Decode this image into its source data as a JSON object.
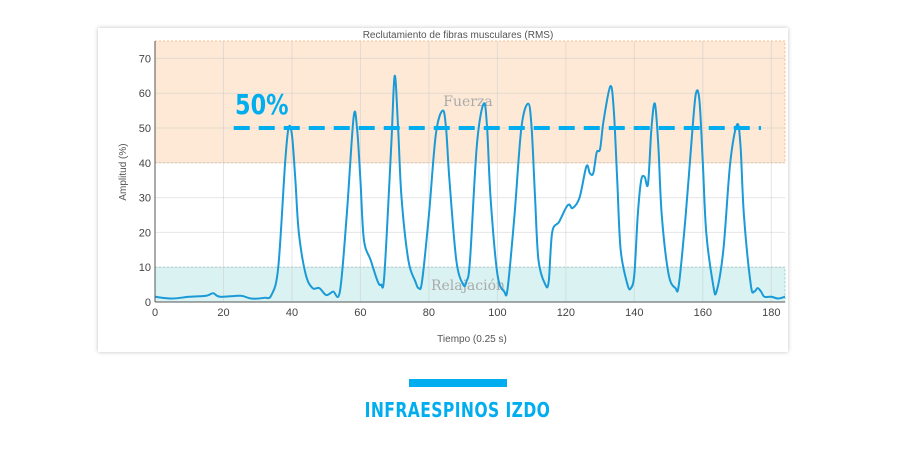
{
  "chart_data": {
    "type": "line",
    "title": "Reclutamiento de fibras musculares (RMS)",
    "xlabel": "Tiempo (0.25 s)",
    "ylabel": "Amplitud (%)",
    "xlim": [
      0,
      184
    ],
    "ylim": [
      0,
      75
    ],
    "xticks": [
      0,
      20,
      40,
      60,
      80,
      100,
      120,
      140,
      160,
      180
    ],
    "yticks": [
      0,
      10,
      20,
      30,
      40,
      50,
      60,
      70
    ],
    "grid": true,
    "line_color": "#1a9ad6",
    "bands": [
      {
        "label": "Fuerza",
        "from": 40,
        "to": 75,
        "color": "#fde9d6",
        "border": "#f6bf8e"
      },
      {
        "label": "Relajación",
        "from": 0,
        "to": 10,
        "color": "#daf2f2",
        "border": "#8fd3d3"
      }
    ],
    "threshold": {
      "label": "50%",
      "value": 50,
      "x_from": 23,
      "x_to": 177,
      "color": "#00aeef"
    },
    "x": [
      0,
      5,
      10,
      15,
      17,
      19,
      25,
      28,
      32,
      34,
      36,
      38,
      39,
      40,
      41,
      42,
      44,
      46,
      48,
      50,
      52,
      54,
      56,
      58,
      59,
      60,
      61,
      63,
      65,
      66,
      67,
      69,
      70,
      71,
      72,
      74,
      76,
      77,
      78,
      80,
      82,
      84,
      85,
      86,
      88,
      90,
      91,
      92,
      94,
      96,
      97,
      98,
      100,
      102,
      103,
      105,
      107,
      109,
      110,
      111,
      112,
      114,
      115,
      116,
      118,
      120,
      121,
      122,
      124,
      126,
      127,
      128,
      129,
      130,
      131,
      133,
      134,
      135,
      136,
      138,
      139,
      140,
      141,
      142,
      143,
      144,
      145,
      146,
      147,
      148,
      150,
      152,
      153,
      155,
      157,
      158,
      159,
      160,
      161,
      163,
      164,
      166,
      168,
      170,
      171,
      172,
      174,
      175,
      176,
      177,
      178,
      180,
      182,
      184
    ],
    "y": [
      1.5,
      1,
      1.5,
      1.8,
      2.5,
      1.5,
      1.8,
      1,
      1.2,
      2,
      10,
      40,
      50,
      48,
      35,
      20,
      8,
      4,
      4,
      2,
      3,
      3,
      25,
      53,
      50,
      35,
      18,
      12,
      6,
      5,
      8,
      45,
      65,
      50,
      30,
      12,
      6,
      4,
      6,
      25,
      48,
      55,
      50,
      35,
      12,
      5,
      6,
      12,
      45,
      57,
      50,
      30,
      8,
      3,
      4,
      25,
      50,
      57,
      50,
      30,
      12,
      5,
      6,
      20,
      23,
      27,
      28,
      27,
      30,
      39,
      37,
      37,
      43,
      44,
      52,
      62,
      55,
      35,
      15,
      5,
      4,
      8,
      25,
      35,
      36,
      34,
      50,
      57,
      45,
      25,
      8,
      4,
      5,
      25,
      50,
      60,
      58,
      40,
      20,
      5,
      3,
      15,
      40,
      51,
      45,
      25,
      5,
      3,
      4,
      3,
      1.5,
      1.5,
      1,
      1.5
    ]
  },
  "caption": "INFRAESPINOS IZDO",
  "caption_color": "#00aeef"
}
